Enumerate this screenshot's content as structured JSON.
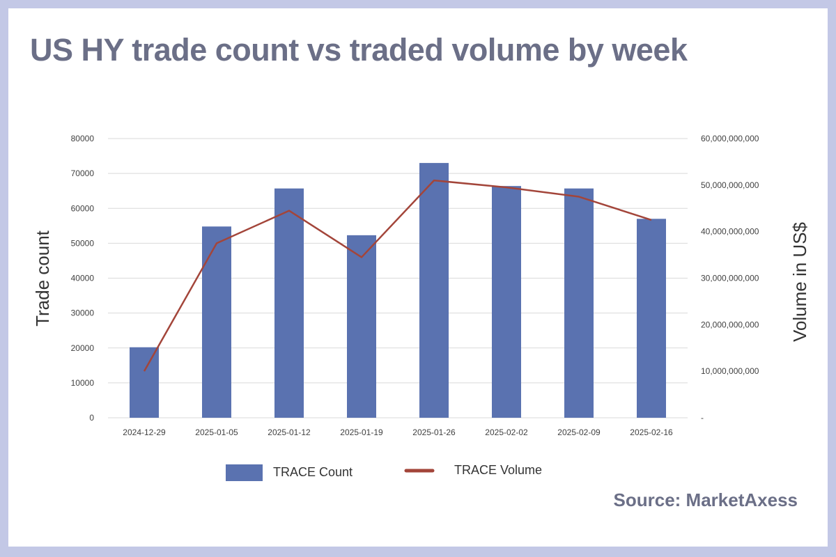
{
  "title": "US HY trade count vs traded volume by week",
  "source": "Source: MarketAxess",
  "colors": {
    "background_frame": "#c3c8e6",
    "title_text": "#6b6f87",
    "bar": "#5a72b0",
    "line": "#a3453a",
    "grid": "#d9d9d9"
  },
  "chart_data": {
    "type": "bar",
    "categories": [
      "2024-12-29",
      "2025-01-05",
      "2025-01-12",
      "2025-01-19",
      "2025-01-26",
      "2025-02-02",
      "2025-02-09",
      "2025-02-16"
    ],
    "series": [
      {
        "name": "TRACE Count",
        "type": "bar",
        "axis": "left",
        "values": [
          20200,
          54800,
          65700,
          52300,
          73000,
          66400,
          65700,
          57000
        ]
      },
      {
        "name": "TRACE Volume",
        "type": "line",
        "axis": "right",
        "values": [
          10000000000,
          37500000000,
          44500000000,
          34500000000,
          51000000000,
          49500000000,
          47500000000,
          42500000000
        ]
      }
    ],
    "ylabel": "Trade count",
    "y2label": "Volume in US$",
    "ylim": [
      0,
      80000
    ],
    "y2lim": [
      0,
      60000000000
    ],
    "yticks": [
      "0",
      "10000",
      "20000",
      "30000",
      "40000",
      "50000",
      "60000",
      "70000",
      "80000"
    ],
    "y2ticks": [
      "-",
      "10,000,000,000",
      "20,000,000,000",
      "30,000,000,000",
      "40,000,000,000",
      "50,000,000,000",
      "60,000,000,000"
    ],
    "grid": true,
    "legend": "bottom"
  }
}
